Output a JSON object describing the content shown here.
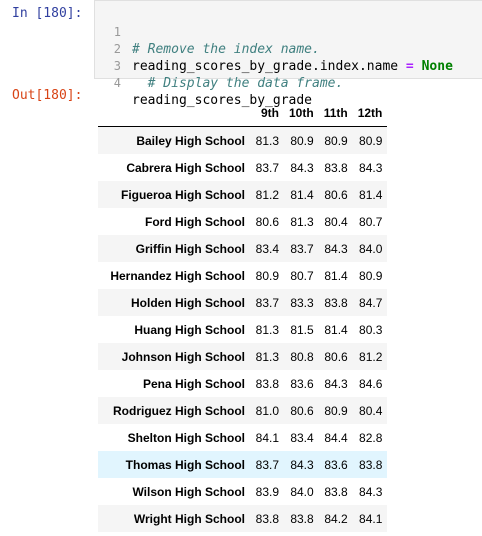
{
  "input_cell": {
    "prompt": "In [180]:",
    "lines": [
      {
        "num": "1",
        "comment": "# Remove the index name."
      },
      {
        "num": "2",
        "code": "reading_scores_by_grade.index.name",
        "op": " = ",
        "keyword": "None"
      },
      {
        "num": "3",
        "comment": "  # Display the data frame."
      },
      {
        "num": "4",
        "code": "reading_scores_by_grade"
      }
    ]
  },
  "output_cell": {
    "prompt": "Out[180]:",
    "table": {
      "columns": [
        "9th",
        "10th",
        "11th",
        "12th"
      ],
      "rows": [
        {
          "index": "Bailey High School",
          "values": [
            "81.3",
            "80.9",
            "80.9",
            "80.9"
          ]
        },
        {
          "index": "Cabrera High School",
          "values": [
            "83.7",
            "84.3",
            "83.8",
            "84.3"
          ]
        },
        {
          "index": "Figueroa High School",
          "values": [
            "81.2",
            "81.4",
            "80.6",
            "81.4"
          ]
        },
        {
          "index": "Ford High School",
          "values": [
            "80.6",
            "81.3",
            "80.4",
            "80.7"
          ]
        },
        {
          "index": "Griffin High School",
          "values": [
            "83.4",
            "83.7",
            "84.3",
            "84.0"
          ]
        },
        {
          "index": "Hernandez High School",
          "values": [
            "80.9",
            "80.7",
            "81.4",
            "80.9"
          ]
        },
        {
          "index": "Holden High School",
          "values": [
            "83.7",
            "83.3",
            "83.8",
            "84.7"
          ]
        },
        {
          "index": "Huang High School",
          "values": [
            "81.3",
            "81.5",
            "81.4",
            "80.3"
          ]
        },
        {
          "index": "Johnson High School",
          "values": [
            "81.3",
            "80.8",
            "80.6",
            "81.2"
          ]
        },
        {
          "index": "Pena High School",
          "values": [
            "83.8",
            "83.6",
            "84.3",
            "84.6"
          ]
        },
        {
          "index": "Rodriguez High School",
          "values": [
            "81.0",
            "80.6",
            "80.9",
            "80.4"
          ]
        },
        {
          "index": "Shelton High School",
          "values": [
            "84.1",
            "83.4",
            "84.4",
            "82.8"
          ]
        },
        {
          "index": "Thomas High School",
          "values": [
            "83.7",
            "84.3",
            "83.6",
            "83.8"
          ]
        },
        {
          "index": "Wilson High School",
          "values": [
            "83.9",
            "84.0",
            "83.8",
            "84.3"
          ]
        },
        {
          "index": "Wright High School",
          "values": [
            "83.8",
            "83.8",
            "84.2",
            "84.1"
          ]
        }
      ],
      "highlighted_row": "Thomas High School"
    }
  },
  "colors": {
    "in_prompt": "#303f9f",
    "out_prompt": "#d84315",
    "comment": "#408080",
    "operator": "#aa22ff",
    "keyword": "#008000",
    "row_highlight": "#e1f5fe"
  }
}
